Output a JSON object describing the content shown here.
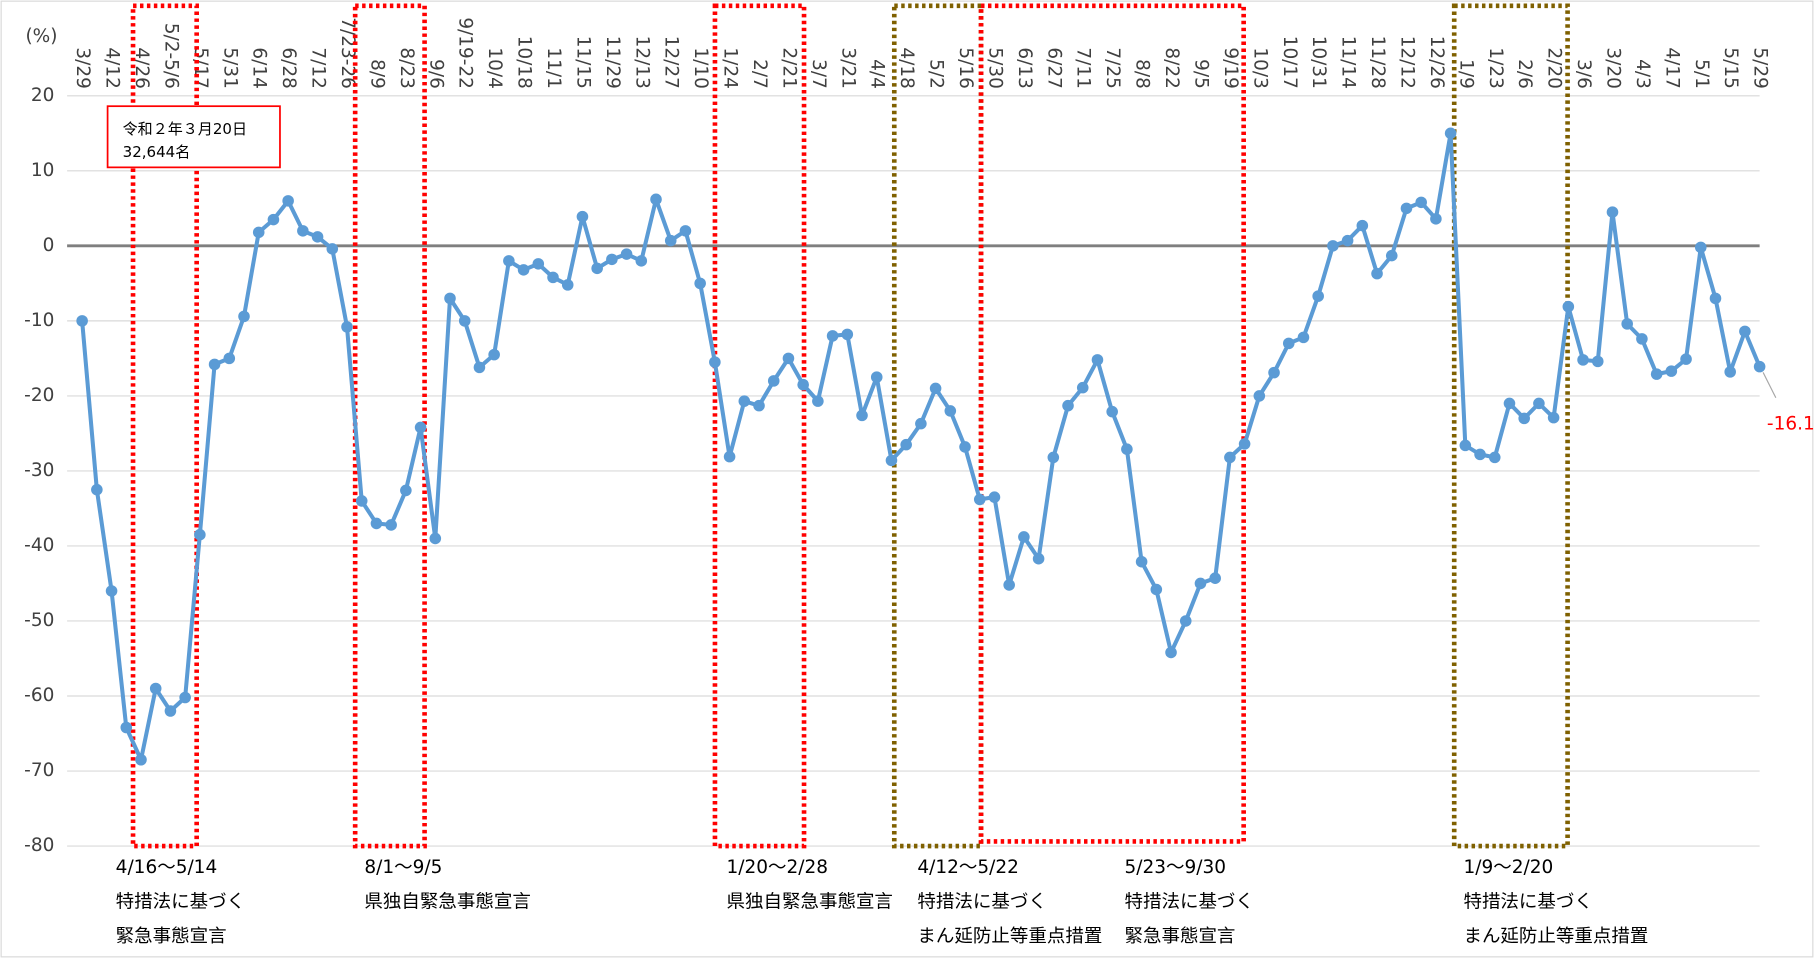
{
  "chart_data": {
    "type": "line",
    "y_label": "(%)",
    "color": "#5b9bd5",
    "grid": true,
    "ylim": [
      -80,
      20
    ],
    "yticks": [
      -80,
      -70,
      -60,
      -50,
      -40,
      -30,
      -20,
      -10,
      0,
      10,
      20
    ],
    "categories": [
      "3/29",
      null,
      "4/12",
      null,
      "4/26",
      null,
      "5/2-5/6",
      null,
      "5/17",
      null,
      "5/31",
      null,
      "6/14",
      null,
      "6/28",
      null,
      "7/12",
      null,
      "7/23-26",
      null,
      "8/9",
      null,
      "8/23",
      null,
      "9/6",
      null,
      "9/19-22",
      null,
      "10/4",
      null,
      "10/18",
      null,
      "11/1",
      null,
      "11/15",
      null,
      "11/29",
      null,
      "12/13",
      null,
      "12/27",
      null,
      "1/10",
      null,
      "1/24",
      null,
      "2/7",
      null,
      "2/21",
      null,
      "3/7",
      null,
      "3/21",
      null,
      "4/4",
      null,
      "4/18",
      null,
      "5/2",
      null,
      "5/16",
      null,
      "5/30",
      null,
      "6/13",
      null,
      "6/27",
      null,
      "7/11",
      null,
      "7/25",
      null,
      "8/8",
      null,
      "8/22",
      null,
      "9/5",
      null,
      "9/19",
      null,
      "10/3",
      null,
      "10/17",
      null,
      "10/31",
      null,
      "11/14",
      null,
      "11/28",
      null,
      "12/12",
      null,
      "12/26",
      null,
      "1/9",
      null,
      "1/23",
      null,
      "2/6",
      null,
      "2/20",
      null,
      "3/6",
      null,
      "3/20",
      null,
      "4/3",
      null,
      "4/17",
      null,
      "5/1",
      null,
      "5/15",
      null,
      "5/29"
    ],
    "values": [
      -10,
      -32.5,
      -46,
      -64.2,
      -68.5,
      -59,
      -62,
      -60.2,
      -38.5,
      -15.8,
      -15,
      -9.4,
      1.8,
      3.5,
      6,
      2,
      1.2,
      -0.4,
      -10.8,
      -34,
      -37,
      -37.2,
      -32.6,
      -24.2,
      -39,
      -7,
      -10,
      -16.2,
      -14.5,
      -2,
      -3.2,
      -2.4,
      -4.2,
      -5.2,
      3.9,
      -3,
      -1.8,
      -1.1,
      -2,
      6.2,
      0.7,
      2,
      -5,
      -15.5,
      -28.1,
      -20.7,
      -21.3,
      -18,
      -15,
      -18.5,
      -20.7,
      -12,
      -11.8,
      -22.6,
      -17.5,
      -28.6,
      -26.5,
      -23.7,
      -19,
      -22,
      -26.8,
      -33.8,
      -33.5,
      -45.2,
      -38.8,
      -41.7,
      -28.2,
      -21.3,
      -18.9,
      -15.2,
      -22.1,
      -27.1,
      -42.1,
      -45.8,
      -54.2,
      -50,
      -45,
      -44.3,
      -28.2,
      -26.4,
      -20,
      -16.9,
      -13,
      -12.2,
      -6.7,
      0,
      0.7,
      2.7,
      -3.7,
      -1.3,
      5,
      5.8,
      3.6,
      15,
      -26.6,
      -27.8,
      -28.2,
      -21,
      -23,
      -21,
      -22.9,
      -8.1,
      -15.2,
      -15.4,
      4.5,
      -10.4,
      -12.4,
      -17.1,
      -16.7,
      -15.1,
      -0.2,
      -7,
      -16.8,
      -11.4,
      -16.1
    ],
    "callout": [
      "令和２年３月20日",
      "32,644名"
    ],
    "periods": [
      {
        "color": "#ff0000",
        "lines": [
          "4/16～5/14",
          "特措法に基づく",
          "緊急事態宣言"
        ]
      },
      {
        "color": "#ff0000",
        "lines": [
          "8/1～9/5",
          "県独自緊急事態宣言"
        ]
      },
      {
        "color": "#ff0000",
        "lines": [
          "1/20～2/28",
          "県独自緊急事態宣言"
        ]
      },
      {
        "color": "#7f6000",
        "lines": [
          "4/12～5/22",
          "特措法に基づく",
          "まん延防止等重点措置"
        ]
      },
      {
        "color": "#ff0000",
        "lines": [
          "5/23～9/30",
          "特措法に基づく",
          "緊急事態宣言"
        ]
      },
      {
        "color": "#7f6000",
        "lines": [
          "1/9～2/20",
          "特措法に基づく",
          "まん延防止等重点措置"
        ]
      }
    ]
  }
}
